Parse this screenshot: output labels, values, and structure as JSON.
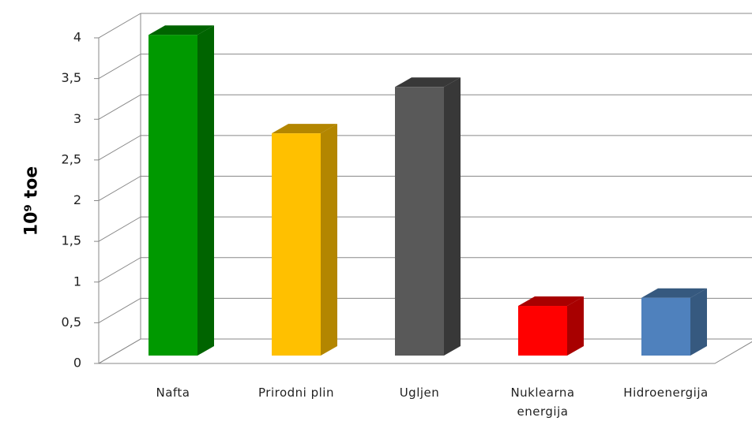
{
  "chart_data": {
    "type": "bar3d",
    "y_label": "10⁹ toe",
    "categories": [
      "Nafta",
      "Prirodni plin",
      "Ugljen",
      "Nuklearna energija",
      "Hidroenergija"
    ],
    "values": [
      3.94,
      2.73,
      3.3,
      0.61,
      0.71
    ],
    "colors": [
      "#009900",
      "#ffc000",
      "#595959",
      "#ff0000",
      "#4f81bd"
    ],
    "side_colors": [
      "#006400",
      "#b38600",
      "#383838",
      "#a80000",
      "#36597f"
    ],
    "ylim": [
      0,
      4
    ],
    "yticks": [
      0,
      {
        "value": 0.5,
        "label": "0,5"
      },
      1,
      {
        "value": 1.5,
        "label": "1,5"
      },
      2,
      {
        "value": 2.5,
        "label": "2,5"
      },
      3,
      {
        "value": 3.5,
        "label": "3,5"
      },
      4
    ],
    "grid": true
  }
}
